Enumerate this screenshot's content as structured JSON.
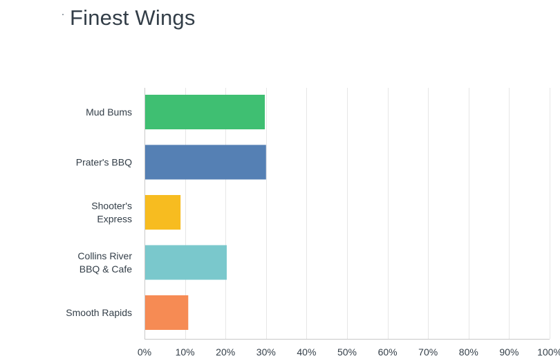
{
  "chart_data": {
    "type": "bar",
    "orientation": "horizontal",
    "title": "Finest Wings",
    "categories": [
      "Mud Bums",
      "Prater's BBQ",
      "Shooter's Express",
      "Collins River BBQ & Cafe",
      "Smooth Rapids"
    ],
    "category_lines": [
      [
        "Mud Bums"
      ],
      [
        "Prater's BBQ"
      ],
      [
        "Shooter's",
        "Express"
      ],
      [
        "Collins River",
        "BBQ & Cafe"
      ],
      [
        "Smooth Rapids"
      ]
    ],
    "values": [
      29.7,
      30.0,
      8.9,
      20.3,
      10.8
    ],
    "colors": [
      "#3fbf72",
      "#5580b4",
      "#f7bc20",
      "#7ac8cc",
      "#f68b54"
    ],
    "xlim": [
      0,
      100
    ],
    "xticks": [
      0,
      10,
      20,
      30,
      40,
      50,
      60,
      70,
      80,
      90,
      100
    ],
    "xtick_labels": [
      "0%",
      "10%",
      "20%",
      "30%",
      "40%",
      "50%",
      "60%",
      "70%",
      "80%",
      "90%",
      "100%"
    ],
    "grid": true,
    "legend": "none"
  }
}
